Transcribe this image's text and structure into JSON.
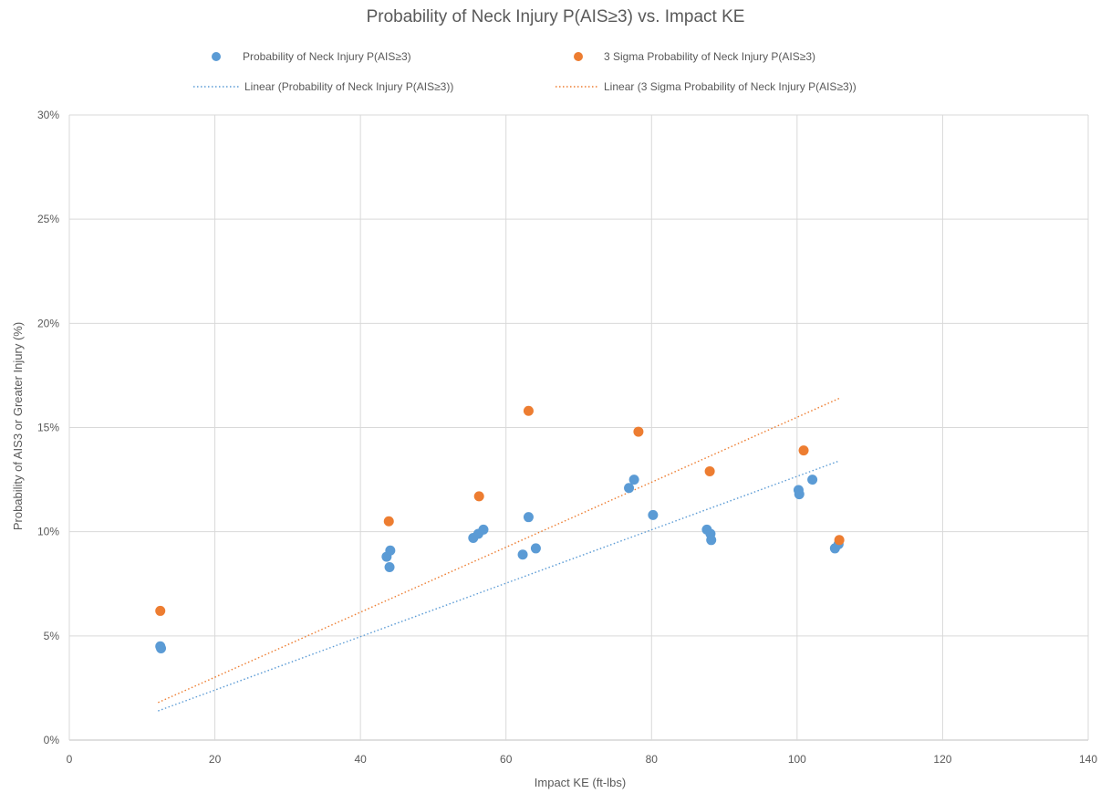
{
  "chart_data": {
    "type": "scatter",
    "title": "Probability of Neck Injury P(AIS≥3) vs. Impact KE",
    "xlabel": "Impact KE (ft-lbs)",
    "ylabel": "Probability of AIS3 or Greater Injury (%)",
    "xlim": [
      0,
      140
    ],
    "ylim": [
      0,
      30
    ],
    "xticks": [
      "0",
      "20",
      "40",
      "60",
      "80",
      "100",
      "120",
      "140"
    ],
    "yticks": [
      "0%",
      "5%",
      "10%",
      "15%",
      "20%",
      "25%",
      "30%"
    ],
    "grid": true,
    "legend_position": "top",
    "series": [
      {
        "name": "Probability of Neck Injury P(AIS≥3)",
        "color": "#5B9BD5",
        "points": [
          [
            12.5,
            4.5
          ],
          [
            12.6,
            4.4
          ],
          [
            43.6,
            8.8
          ],
          [
            44.1,
            9.1
          ],
          [
            44.0,
            8.3
          ],
          [
            55.5,
            9.7
          ],
          [
            56.2,
            9.9
          ],
          [
            56.9,
            10.1
          ],
          [
            62.3,
            8.9
          ],
          [
            63.1,
            10.7
          ],
          [
            64.1,
            9.2
          ],
          [
            76.9,
            12.1
          ],
          [
            77.6,
            12.5
          ],
          [
            80.2,
            10.8
          ],
          [
            87.6,
            10.1
          ],
          [
            88.1,
            9.9
          ],
          [
            88.2,
            9.6
          ],
          [
            100.2,
            12.0
          ],
          [
            100.3,
            11.8
          ],
          [
            102.1,
            12.5
          ],
          [
            105.2,
            9.2
          ],
          [
            105.7,
            9.4
          ]
        ]
      },
      {
        "name": "3 Sigma Probability of Neck Injury P(AIS≥3)",
        "color": "#ED7D31",
        "points": [
          [
            12.5,
            6.2
          ],
          [
            43.9,
            10.5
          ],
          [
            56.3,
            11.7
          ],
          [
            63.1,
            15.8
          ],
          [
            78.2,
            14.8
          ],
          [
            88.0,
            12.9
          ],
          [
            100.9,
            13.9
          ],
          [
            105.8,
            9.6
          ]
        ]
      }
    ],
    "trendlines": [
      {
        "name": "Linear (Probability of Neck Injury P(AIS≥3))",
        "color": "#5B9BD5",
        "x": [
          12.2,
          105.8
        ],
        "y": [
          1.4,
          13.4
        ]
      },
      {
        "name": "Linear (3 Sigma Probability of Neck Injury P(AIS≥3))",
        "color": "#ED7D31",
        "x": [
          12.2,
          105.8
        ],
        "y": [
          1.8,
          16.4
        ]
      }
    ]
  }
}
